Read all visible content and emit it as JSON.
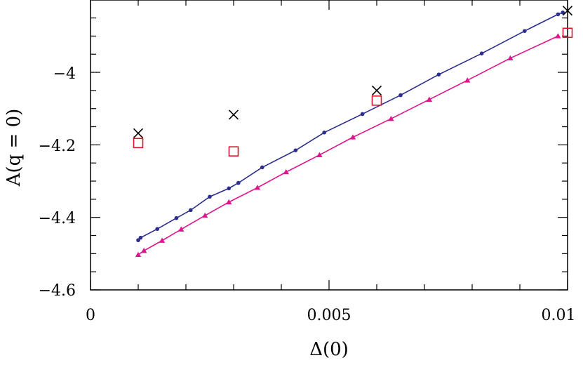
{
  "chart_data": {
    "type": "scatter",
    "title": "",
    "xlabel": "Δ(0)",
    "ylabel": "A(q = 0)",
    "xlim": [
      0,
      0.01
    ],
    "ylim": [
      -4.6,
      -3.83
    ],
    "x_ticks": [
      0,
      0.005,
      0.01
    ],
    "x_tick_labels": [
      "0",
      "0.005",
      "0.01"
    ],
    "y_ticks": [
      -4.6,
      -4.4,
      -4.2,
      -4.0
    ],
    "y_tick_labels": [
      "−4.6",
      "−4.4",
      "−4.2",
      "−4"
    ],
    "grid": false,
    "legend": "none",
    "series": [
      {
        "marker": "circle",
        "line": true,
        "color": "#2b2e8c",
        "x": [
          0.001,
          0.00105,
          0.0014,
          0.0018,
          0.0021,
          0.0025,
          0.0029,
          0.0031,
          0.0036,
          0.0043,
          0.0049,
          0.0057,
          0.0065,
          0.0073,
          0.0082,
          0.0091,
          0.0098,
          0.0099
        ],
        "y": [
          -4.463,
          -4.456,
          -4.432,
          -4.402,
          -4.38,
          -4.343,
          -4.32,
          -4.305,
          -4.262,
          -4.215,
          -4.166,
          -4.115,
          -4.063,
          -4.006,
          -3.948,
          -3.886,
          -3.84,
          -3.835
        ]
      },
      {
        "marker": "triangle",
        "line": true,
        "color": "#e0148c",
        "x": [
          0.001,
          0.00112,
          0.0015,
          0.0019,
          0.0024,
          0.0029,
          0.0035,
          0.0041,
          0.0048,
          0.0055,
          0.0063,
          0.0071,
          0.0079,
          0.0088,
          0.0098
        ],
        "y": [
          -4.503,
          -4.492,
          -4.464,
          -4.433,
          -4.395,
          -4.358,
          -4.318,
          -4.275,
          -4.228,
          -4.179,
          -4.128,
          -4.075,
          -4.022,
          -3.961,
          -3.9
        ]
      },
      {
        "marker": "cross",
        "line": false,
        "color": "#000000",
        "x": [
          0.001,
          0.003,
          0.006,
          0.01
        ],
        "y": [
          -4.168,
          -4.117,
          -4.05,
          -3.83
        ]
      },
      {
        "marker": "square",
        "line": false,
        "color": "#e0142c",
        "x": [
          0.001,
          0.003,
          0.006,
          0.01
        ],
        "y": [
          -4.195,
          -4.218,
          -4.078,
          -3.891
        ]
      }
    ]
  }
}
